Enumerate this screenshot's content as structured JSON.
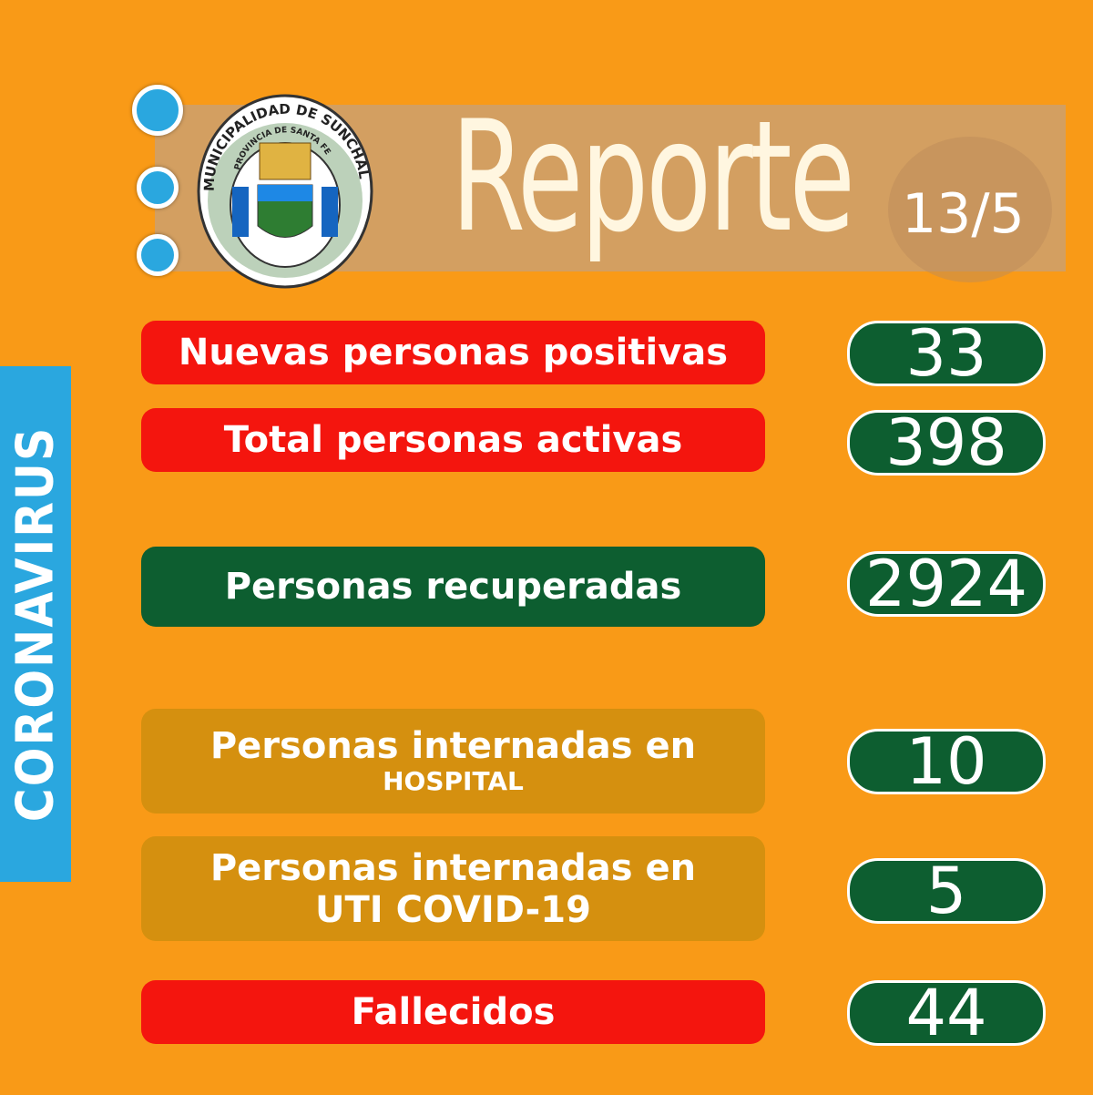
{
  "side_label": "CORONAVIRUS",
  "logo": {
    "top_text": "MUNICIPALIDAD DE SUNCHALES",
    "inner_text": "PROVINCIA DE SANTA FE"
  },
  "header": {
    "title": "Reporte",
    "date": "13/5"
  },
  "rows": [
    {
      "label": "Nuevas personas positivas",
      "value": "33"
    },
    {
      "label": "Total personas activas",
      "value": "398"
    },
    {
      "label": "Personas recuperadas",
      "value": "2924"
    },
    {
      "label": "Personas internadas en",
      "sublabel": "HOSPITAL",
      "value": "10"
    },
    {
      "label": "Personas internadas en",
      "sublabel": "UTI COVID-19",
      "value": "5"
    },
    {
      "label": "Fallecidos",
      "value": "44"
    }
  ]
}
